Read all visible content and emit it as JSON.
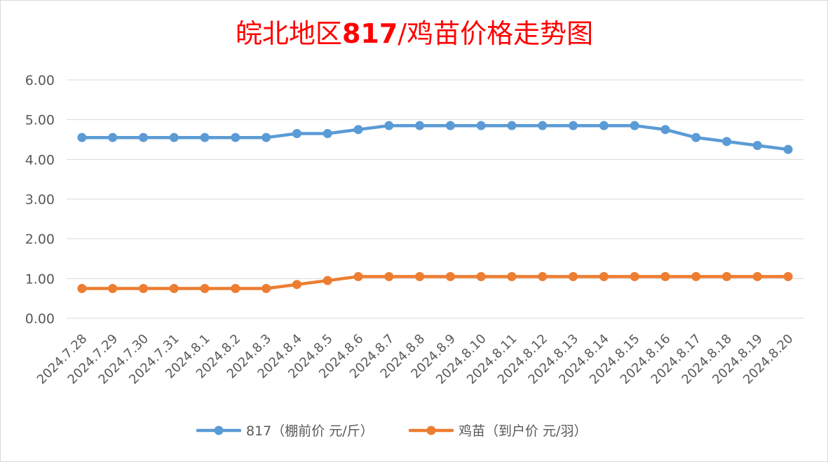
{
  "chart_data": {
    "type": "line",
    "title": "皖北地区817/鸡苗价格走势图",
    "title_parts": {
      "before": "皖北地区",
      "bold": "817",
      "after": "/鸡苗价格走势图"
    },
    "xlabel": "",
    "ylabel": "",
    "ylim": [
      0,
      6
    ],
    "yticks": [
      "0.00",
      "1.00",
      "2.00",
      "3.00",
      "4.00",
      "5.00",
      "6.00"
    ],
    "grid": true,
    "legend_position": "bottom",
    "categories": [
      "2024.7.28",
      "2024.7.29",
      "2024.7.30",
      "2024.7.31",
      "2024.8.1",
      "2024.8.2",
      "2024.8.3",
      "2024.8.4",
      "2024.8.5",
      "2024.8.6",
      "2024.8.7",
      "2024.8.8",
      "2024.8.9",
      "2024.8.10",
      "2024.8.11",
      "2024.8.12",
      "2024.8.13",
      "2024.8.14",
      "2024.8.15",
      "2024.8.16",
      "2024.8.17",
      "2024.8.18",
      "2024.8.19",
      "2024.8.20"
    ],
    "series": [
      {
        "name": "817（棚前价 元/斤）",
        "color": "#5b9bd5",
        "values": [
          4.55,
          4.55,
          4.55,
          4.55,
          4.55,
          4.55,
          4.55,
          4.65,
          4.65,
          4.75,
          4.85,
          4.85,
          4.85,
          4.85,
          4.85,
          4.85,
          4.85,
          4.85,
          4.85,
          4.75,
          4.55,
          4.45,
          4.35,
          4.25
        ]
      },
      {
        "name": "鸡苗（到户价 元/羽）",
        "color": "#ed7d31",
        "values": [
          0.75,
          0.75,
          0.75,
          0.75,
          0.75,
          0.75,
          0.75,
          0.85,
          0.95,
          1.05,
          1.05,
          1.05,
          1.05,
          1.05,
          1.05,
          1.05,
          1.05,
          1.05,
          1.05,
          1.05,
          1.05,
          1.05,
          1.05,
          1.05
        ]
      }
    ]
  }
}
